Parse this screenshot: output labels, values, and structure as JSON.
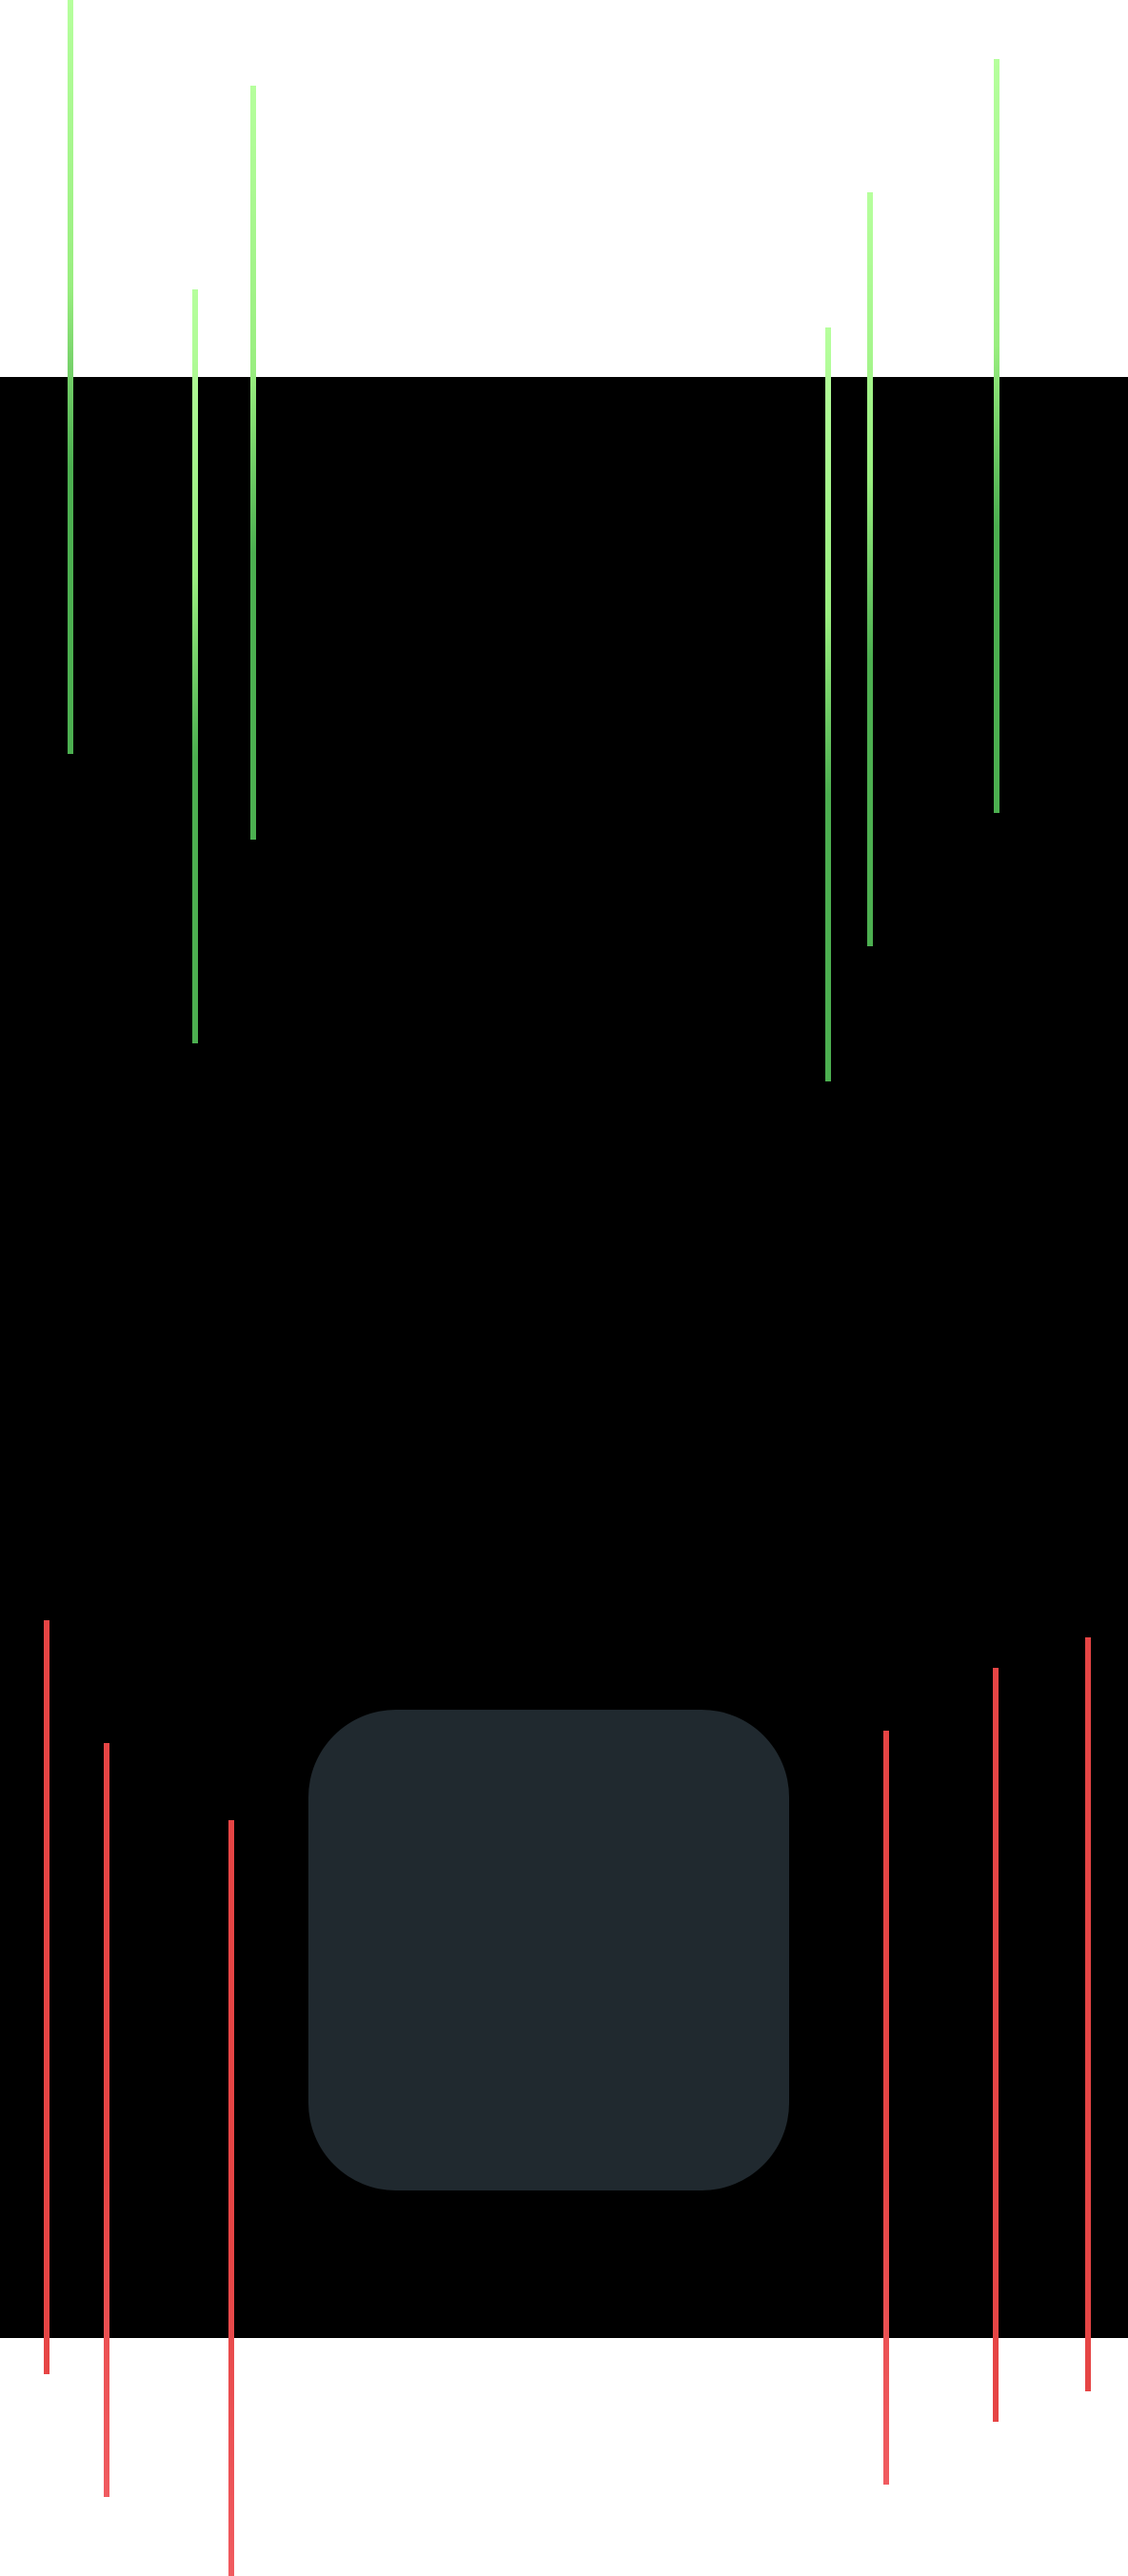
{
  "scene": {
    "background_color": "#ffffff",
    "panel_color": "#000000",
    "tile_color": "#20292f"
  },
  "streaks": {
    "green_color_top": "#b6ff9d",
    "green_color_bottom": "#4caf50",
    "red_color": "#e64545"
  }
}
